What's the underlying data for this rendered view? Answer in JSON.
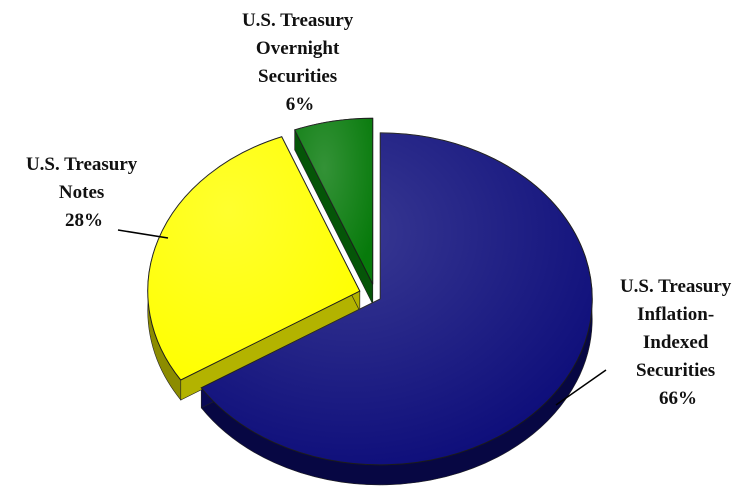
{
  "chart_data": {
    "type": "pie",
    "slices": [
      {
        "name_lines": [
          "U.S. Treasury",
          "Inflation-",
          "Indexed",
          "Securities"
        ],
        "value": 66,
        "percent_label": "66%",
        "color": "#0D0D7A"
      },
      {
        "name_lines": [
          "U.S. Treasury",
          "Notes"
        ],
        "value": 28,
        "percent_label": "28%",
        "color": "#FFFF00"
      },
      {
        "name_lines": [
          "U.S. Treasury",
          "Overnight",
          "Securities"
        ],
        "value": 6,
        "percent_label": "6%",
        "color": "#077A0B"
      }
    ]
  }
}
